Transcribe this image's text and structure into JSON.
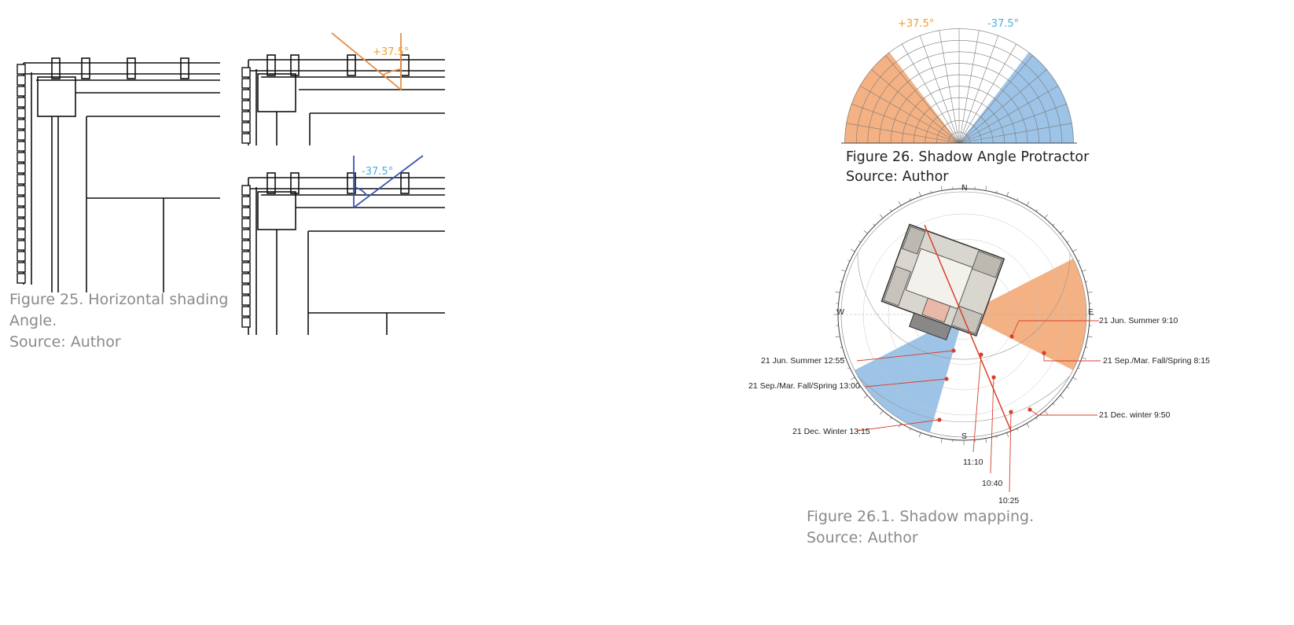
{
  "fig25": {
    "caption_line1": "Figure 25. Horizontal shading",
    "caption_line2": "Angle.",
    "source": "Source: Author",
    "angle_pos": "+37.5°",
    "angle_neg": "-37.5°"
  },
  "fig26": {
    "caption": "Figure 26. Shadow Angle Protractor",
    "source": "Source: Author",
    "angle_pos": "+37.5°",
    "angle_neg": "-37.5°"
  },
  "fig261": {
    "caption": "Figure 26.1. Shadow mapping.",
    "source": "Source: Author",
    "labels": {
      "jun_summer_910": "21 Jun. Summer 9:10",
      "sep_mar_815": "21 Sep./Mar. Fall/Spring 8:15",
      "dec_winter_950": "21 Dec. winter 9:50",
      "jun_summer_1255": "21 Jun. Summer 12:55",
      "sep_mar_1300": "21 Sep./Mar. Fall/Spring 13:00",
      "dec_winter_1315": "21 Dec. Winter 13:15",
      "t1110": "11:10",
      "t1040": "10:40",
      "t1025": "10:25"
    },
    "compass": {
      "n": "N",
      "s": "S",
      "e": "E",
      "w": "W"
    }
  },
  "colors": {
    "orange": "#f4b183",
    "orange_line": "#e8904a",
    "blue": "#9dc3e6",
    "blue_line": "#3a55b4",
    "red": "#d9402a",
    "angle_orange": "#f0a030",
    "angle_blue": "#4ab0e0"
  }
}
